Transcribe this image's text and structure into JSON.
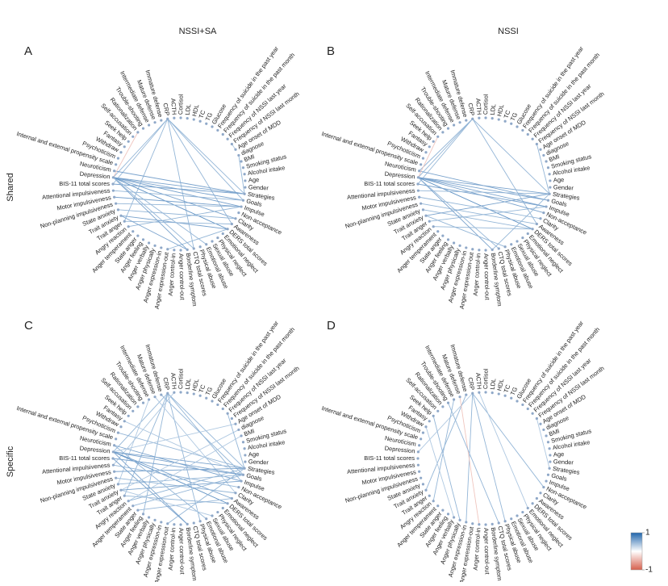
{
  "titles": [
    "NSSI+SA",
    "NSSI"
  ],
  "rows": [
    "Shared",
    "Specific"
  ],
  "nodes": [
    "CRP",
    "ACTH",
    "Cortisol",
    "LDL",
    "HDL",
    "TC",
    "TG",
    "Glucose",
    "Frequency of suicide in the past year",
    "Frequency of suicide in the past month",
    "Frequency of NSSI last year",
    "Frequency of NSSI last month",
    "Age onset of MDD",
    "diagnose",
    "BMI",
    "Smoking status",
    "Alcohol intake",
    "Age",
    "Gender",
    "Strategies",
    "Goals",
    "Impulse",
    "Non-acceptance",
    "Clarity",
    "Awareness",
    "DERS total scores",
    "Emotional neglect",
    "Physical neglect",
    "Sexual abuse",
    "Emotional abuse",
    "Physical abuse",
    "CTQ total scores",
    "Borderline symptom",
    "Anger control-out",
    "Anger control-in",
    "Anger expression-out",
    "Anger expression-in",
    "Anger physically",
    "Anger verbally",
    "Anger feeling",
    "State anger",
    "Anger temperament",
    "Angry reaction",
    "Trait anger",
    "Trait anxiety",
    "State anxiety",
    "Non-planning impulsiveness",
    "Motor impulsiveness",
    "Attentional impulsiveness",
    "BIS-11 total scores",
    "Depression",
    "Neuroticism",
    "Internal and external propensity scale",
    "Psychoticism",
    "Withdraw",
    "Fantasy",
    "Seek help",
    "Self-accusation",
    "Rationalization",
    "Trouble-shooting",
    "Intermediate defense",
    "Mature defense",
    "Immature defense"
  ],
  "node_color": "#8fa8c8",
  "panels": [
    {
      "letter": "A",
      "edges": [
        [
          "CRP",
          "Depression",
          0.4
        ],
        [
          "CRP",
          "Strategies",
          0.4
        ],
        [
          "CRP",
          "BIS-11 total scores",
          0.4
        ],
        [
          "CRP",
          "Awareness",
          0.4
        ],
        [
          "CRP",
          "Trait anger",
          0.4
        ],
        [
          "CRP",
          "CTQ total scores",
          0.4
        ],
        [
          "CRP",
          "Goals",
          0.4
        ],
        [
          "Depression",
          "Strategies",
          0.5
        ],
        [
          "Depression",
          "Goals",
          0.5
        ],
        [
          "Depression",
          "Impulse",
          0.5
        ],
        [
          "Depression",
          "Clarity",
          0.5
        ],
        [
          "Depression",
          "DERS total scores",
          0.6
        ],
        [
          "Neuroticism",
          "Strategies",
          0.5
        ],
        [
          "BIS-11 total scores",
          "Strategies",
          0.5
        ],
        [
          "Attentional impulsiveness",
          "Goals",
          0.4
        ],
        [
          "Motor impulsiveness",
          "Impulse",
          0.5
        ],
        [
          "Non-planning impulsiveness",
          "Impulse",
          0.4
        ],
        [
          "State anxiety",
          "Clarity",
          0.4
        ],
        [
          "Trait anxiety",
          "DERS total scores",
          0.5
        ],
        [
          "Trait anger",
          "Awareness",
          0.4
        ],
        [
          "Angry reaction",
          "Impulse",
          0.4
        ],
        [
          "Anger expression-out",
          "DERS total scores",
          0.4
        ],
        [
          "Borderline symptom",
          "Depression",
          0.5
        ],
        [
          "Borderline symptom",
          "Trait anxiety",
          0.5
        ],
        [
          "CTQ total scores",
          "Depression",
          0.4
        ],
        [
          "Emotional abuse",
          "Depression",
          0.4
        ],
        [
          "Rationalization",
          "Depression",
          -0.3
        ],
        [
          "diagnose",
          "Strategies",
          0.4
        ],
        [
          "Frequency of NSSI last month",
          "Age onset of MDD",
          0.3
        ]
      ]
    },
    {
      "letter": "B",
      "edges": [
        [
          "CRP",
          "Depression",
          0.4
        ],
        [
          "CRP",
          "Strategies",
          0.4
        ],
        [
          "CRP",
          "BIS-11 total scores",
          0.4
        ],
        [
          "CRP",
          "Awareness",
          0.4
        ],
        [
          "CRP",
          "Neuroticism",
          0.4
        ],
        [
          "Depression",
          "Strategies",
          0.5
        ],
        [
          "Depression",
          "Goals",
          0.5
        ],
        [
          "Depression",
          "Impulse",
          0.5
        ],
        [
          "Depression",
          "Non-acceptance",
          0.5
        ],
        [
          "Depression",
          "DERS total scores",
          0.6
        ],
        [
          "Neuroticism",
          "Goals",
          0.5
        ],
        [
          "BIS-11 total scores",
          "Impulse",
          0.5
        ],
        [
          "Attentional impulsiveness",
          "Strategies",
          0.4
        ],
        [
          "Motor impulsiveness",
          "Clarity",
          0.4
        ],
        [
          "Non-planning impulsiveness",
          "Awareness",
          0.4
        ],
        [
          "State anxiety",
          "DERS total scores",
          0.4
        ],
        [
          "Trait anxiety",
          "Strategies",
          0.5
        ],
        [
          "Trait anger",
          "Impulse",
          0.4
        ],
        [
          "Angry reaction",
          "DERS total scores",
          0.4
        ],
        [
          "Borderline symptom",
          "Depression",
          0.5
        ],
        [
          "Borderline symptom",
          "Strategies",
          0.4
        ],
        [
          "CTQ total scores",
          "Depression",
          0.4
        ],
        [
          "Physical abuse",
          "Trait anxiety",
          0.4
        ],
        [
          "Self-accusation",
          "Depression",
          -0.3
        ],
        [
          "Frequency of NSSI last month",
          "Strategies",
          0.4
        ]
      ]
    },
    {
      "letter": "C",
      "edges": [
        [
          "CRP",
          "Depression",
          0.4
        ],
        [
          "CRP",
          "Strategies",
          0.4
        ],
        [
          "CRP",
          "Trait anger",
          0.4
        ],
        [
          "CRP",
          "Anger feeling",
          0.4
        ],
        [
          "CRP",
          "Physical abuse",
          0.4
        ],
        [
          "CRP",
          "Impulse",
          0.4
        ],
        [
          "ACTH",
          "Attentional impulsiveness",
          0.3
        ],
        [
          "Immature defense",
          "Goals",
          0.4
        ],
        [
          "Mature defense",
          "Clarity",
          0.3
        ],
        [
          "Intermediate defense",
          "State anxiety",
          0.3
        ],
        [
          "Depression",
          "Strategies",
          0.5
        ],
        [
          "Depression",
          "Goals",
          0.5
        ],
        [
          "Depression",
          "Awareness",
          0.5
        ],
        [
          "Depression",
          "DERS total scores",
          0.6
        ],
        [
          "Neuroticism",
          "Impulse",
          0.5
        ],
        [
          "BIS-11 total scores",
          "Goals",
          0.5
        ],
        [
          "Attentional impulsiveness",
          "Non-acceptance",
          0.4
        ],
        [
          "Motor impulsiveness",
          "Strategies",
          0.5
        ],
        [
          "Non-planning impulsiveness",
          "Clarity",
          0.4
        ],
        [
          "State anxiety",
          "Goals",
          0.4
        ],
        [
          "Trait anxiety",
          "Impulse",
          0.5
        ],
        [
          "Trait anger",
          "DERS total scores",
          0.4
        ],
        [
          "Angry reaction",
          "Strategies",
          0.4
        ],
        [
          "Anger temperament",
          "Goals",
          0.4
        ],
        [
          "State anger",
          "Awareness",
          0.4
        ],
        [
          "Anger expression-out",
          "Strategies",
          0.4
        ],
        [
          "Borderline symptom",
          "Depression",
          0.5
        ],
        [
          "Borderline symptom",
          "BIS-11 total scores",
          0.5
        ],
        [
          "Emotional abuse",
          "Neuroticism",
          0.4
        ],
        [
          "Sexual abuse",
          "Trait anxiety",
          0.3
        ],
        [
          "Psychoticism",
          "Strategies",
          0.4
        ],
        [
          "Fantasy",
          "Goals",
          0.3
        ],
        [
          "Age onset of MDD",
          "Depression",
          0.3
        ],
        [
          "diagnose",
          "Trait anxiety",
          0.3
        ],
        [
          "BMI",
          "Angry reaction",
          0.3
        ],
        [
          "Frequency of NSSI last year",
          "Strategies",
          0.4
        ]
      ]
    },
    {
      "letter": "D",
      "edges": [
        [
          "CRP",
          "Anger expression-in",
          0.4
        ],
        [
          "CRP",
          "Physical abuse",
          0.4
        ],
        [
          "CRP",
          "Non-acceptance",
          0.4
        ],
        [
          "CRP",
          "Depression",
          0.3
        ],
        [
          "Immature defense",
          "Trait anxiety",
          0.4
        ],
        [
          "Mature defense",
          "Anger control-in",
          -0.3
        ],
        [
          "Intermediate defense",
          "Angry reaction",
          0.4
        ],
        [
          "Seek help",
          "Anger physically",
          0.4
        ],
        [
          "Trouble-shooting",
          "CTQ total scores",
          0.4
        ],
        [
          "ACTH",
          "Emotional neglect",
          0.3
        ],
        [
          "Frequency of NSSI last month",
          "Strategies",
          0.3
        ],
        [
          "Withdraw",
          "Anger verbally",
          0.3
        ]
      ]
    }
  ],
  "colorbar": {
    "ticks": [
      1,
      -1
    ],
    "colors": [
      "#2166ac",
      "#ffffff",
      "#d6604d"
    ]
  }
}
